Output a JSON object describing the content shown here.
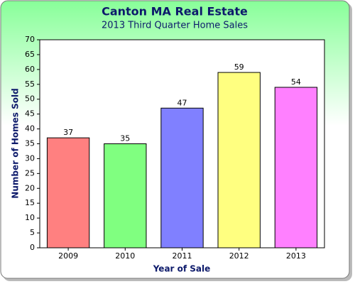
{
  "chart_data": {
    "type": "bar",
    "title": "Canton MA Real Estate",
    "subtitle": "2013 Third Quarter Home Sales",
    "x_label": "Year of Sale",
    "y_label": "Number of Homes Sold",
    "categories": [
      "2009",
      "2010",
      "2011",
      "2012",
      "2013"
    ],
    "values": [
      37,
      35,
      47,
      59,
      54
    ],
    "colors": [
      "#ff8080",
      "#80ff80",
      "#8080ff",
      "#ffff80",
      "#ff80ff"
    ],
    "ylim": [
      0,
      70
    ],
    "yticks": [
      0,
      5,
      10,
      15,
      20,
      25,
      30,
      35,
      40,
      45,
      50,
      55,
      60,
      65,
      70
    ],
    "grid": false,
    "data_labels": true
  }
}
